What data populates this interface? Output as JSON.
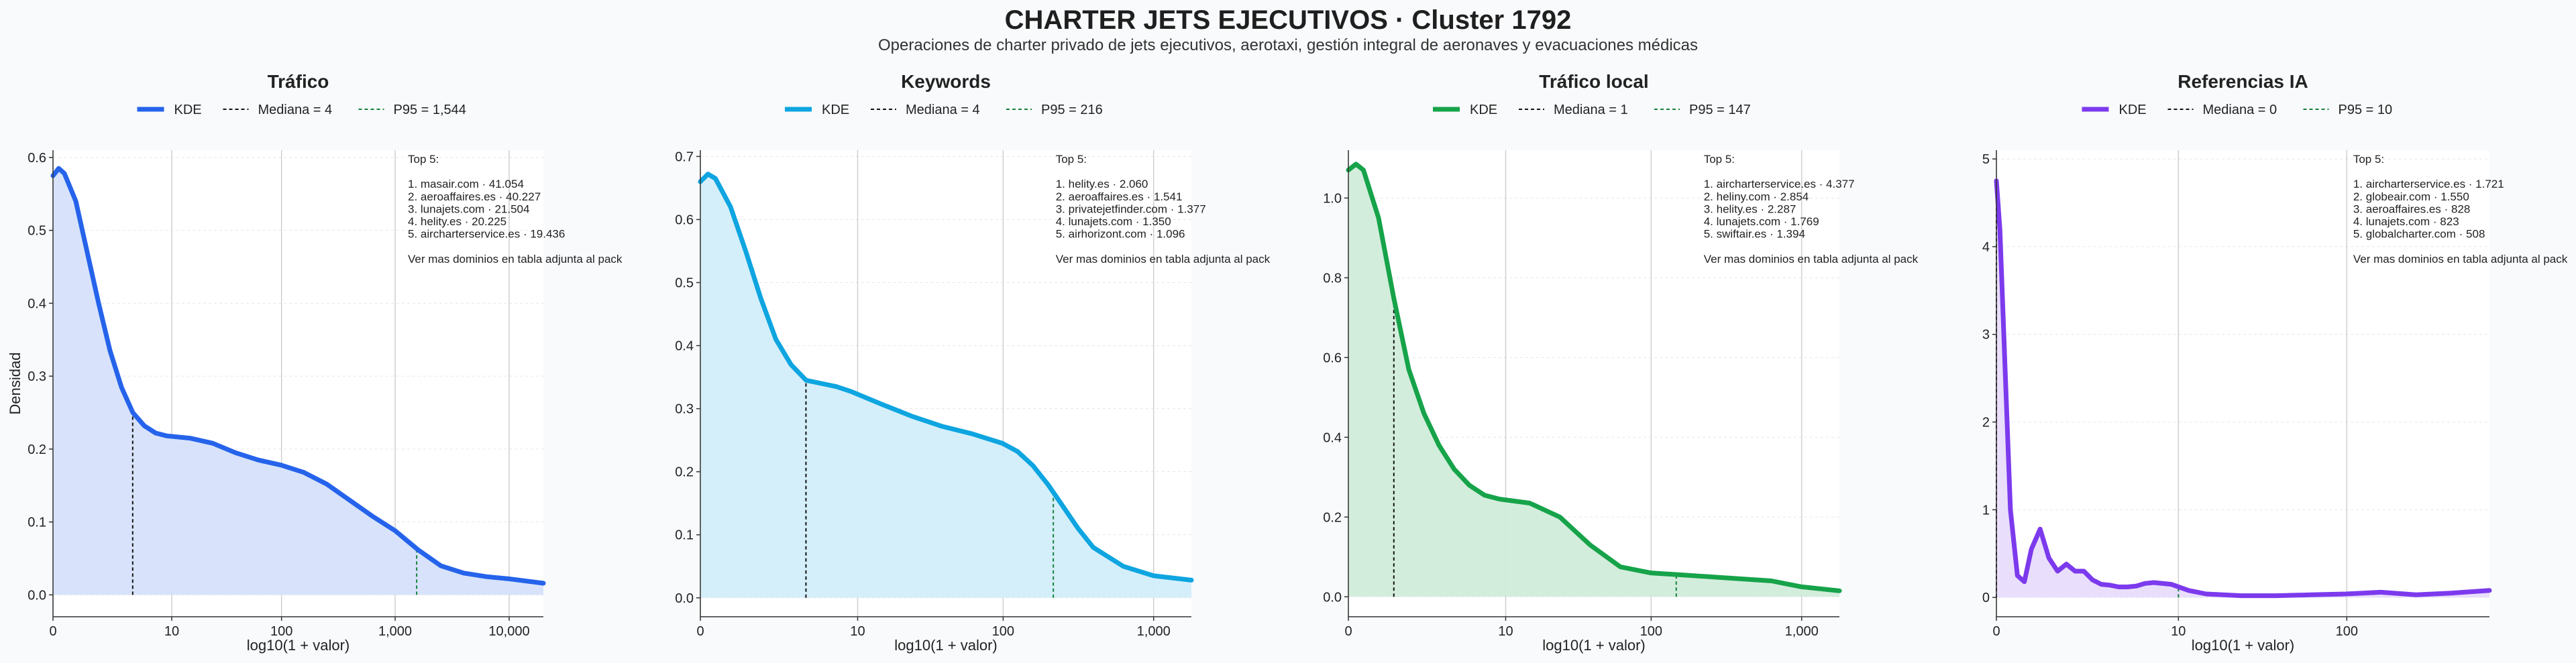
{
  "header": {
    "title": "CHARTER JETS EJECUTIVOS · Cluster 1792",
    "subtitle": "Operaciones de charter privado de jets ejecutivos, aerotaxi, gestión integral de aeronaves y evacuaciones médicas"
  },
  "shared": {
    "ylabel": "Densidad",
    "xlabel": "log10(1 + valor)",
    "legend_kde": "KDE"
  },
  "chart_data": [
    {
      "type": "area",
      "title": "Tráfico",
      "xlabel": "log10(1 + valor)",
      "ylabel": "Densidad",
      "color": "#2563eb",
      "fill": "#d6e1fb",
      "p95_color": "#15803d",
      "xlim": [
        0,
        4.3
      ],
      "ylim": [
        -0.03,
        0.61
      ],
      "xticks": [
        0,
        1.041,
        2.004,
        3.0,
        4.0
      ],
      "xticklabels": [
        "0",
        "10",
        "100",
        "1,000",
        "10,000"
      ],
      "yticks": [
        0.0,
        0.1,
        0.2,
        0.3,
        0.4,
        0.5,
        0.6
      ],
      "yticklabels": [
        "0.0",
        "0.1",
        "0.2",
        "0.3",
        "0.4",
        "0.5",
        "0.6"
      ],
      "legend": [
        "KDE",
        "Mediana = 4",
        "P95 = 1,544"
      ],
      "median": 0.699,
      "p95": 3.189,
      "x": [
        0,
        0.05,
        0.1,
        0.2,
        0.3,
        0.4,
        0.5,
        0.6,
        0.7,
        0.8,
        0.9,
        1.0,
        1.2,
        1.4,
        1.6,
        1.8,
        2.0,
        2.2,
        2.4,
        2.6,
        2.8,
        3.0,
        3.2,
        3.4,
        3.6,
        3.8,
        4.0,
        4.3
      ],
      "y": [
        0.575,
        0.585,
        0.578,
        0.54,
        0.47,
        0.4,
        0.335,
        0.285,
        0.25,
        0.232,
        0.222,
        0.218,
        0.215,
        0.208,
        0.195,
        0.185,
        0.178,
        0.168,
        0.152,
        0.13,
        0.108,
        0.088,
        0.062,
        0.04,
        0.03,
        0.025,
        0.022,
        0.016
      ],
      "annotation": [
        "Top 5:",
        "",
        "1. masair.com · 41.054",
        "2. aeroaffaires.es · 40.227",
        "3. lunajets.com · 21.504",
        "4. helity.es · 20.225",
        "5. aircharterservice.es · 19.436",
        "",
        "Ver mas dominios en tabla adjunta al pack"
      ]
    },
    {
      "type": "area",
      "title": "Keywords",
      "xlabel": "log10(1 + valor)",
      "ylabel": "",
      "color": "#0ea5e0",
      "fill": "#d3eefa",
      "p95_color": "#15803d",
      "xlim": [
        0,
        3.25
      ],
      "ylim": [
        -0.03,
        0.71
      ],
      "xticks": [
        0,
        1.041,
        2.004,
        3.0
      ],
      "xticklabels": [
        "0",
        "10",
        "100",
        "1,000"
      ],
      "yticks": [
        0.0,
        0.1,
        0.2,
        0.3,
        0.4,
        0.5,
        0.6,
        0.7
      ],
      "yticklabels": [
        "0.0",
        "0.1",
        "0.2",
        "0.3",
        "0.4",
        "0.5",
        "0.6",
        "0.7"
      ],
      "legend": [
        "KDE",
        "Mediana = 4",
        "P95 = 216"
      ],
      "median": 0.699,
      "p95": 2.336,
      "x": [
        0,
        0.05,
        0.1,
        0.2,
        0.3,
        0.4,
        0.5,
        0.6,
        0.7,
        0.8,
        0.9,
        1.0,
        1.2,
        1.4,
        1.6,
        1.8,
        2.0,
        2.1,
        2.2,
        2.3,
        2.4,
        2.5,
        2.6,
        2.8,
        3.0,
        3.25
      ],
      "y": [
        0.66,
        0.672,
        0.665,
        0.62,
        0.55,
        0.475,
        0.41,
        0.37,
        0.345,
        0.34,
        0.335,
        0.327,
        0.307,
        0.288,
        0.272,
        0.26,
        0.245,
        0.232,
        0.21,
        0.18,
        0.145,
        0.11,
        0.08,
        0.05,
        0.035,
        0.028
      ],
      "annotation": [
        "Top 5:",
        "",
        "1. helity.es · 2.060",
        "2. aeroaffaires.es · 1.541",
        "3. privatejetfinder.com · 1.377",
        "4. lunajets.com · 1.350",
        "5. airhorizont.com · 1.096",
        "",
        "Ver mas dominios en tabla adjunta al pack"
      ]
    },
    {
      "type": "area",
      "title": "Tráfico local",
      "xlabel": "log10(1 + valor)",
      "ylabel": "",
      "color": "#16a34a",
      "fill": "#d1ecda",
      "p95_color": "#15803d",
      "xlim": [
        0,
        3.25
      ],
      "ylim": [
        -0.05,
        1.12
      ],
      "xticks": [
        0,
        1.041,
        2.004,
        3.0
      ],
      "xticklabels": [
        "0",
        "10",
        "100",
        "1,000"
      ],
      "yticks": [
        0.0,
        0.2,
        0.4,
        0.6,
        0.8,
        1.0
      ],
      "yticklabels": [
        "0.0",
        "0.2",
        "0.4",
        "0.6",
        "0.8",
        "1.0"
      ],
      "legend": [
        "KDE",
        "Mediana = 1",
        "P95 = 147"
      ],
      "median": 0.301,
      "p95": 2.17,
      "x": [
        0,
        0.05,
        0.1,
        0.2,
        0.3,
        0.4,
        0.5,
        0.6,
        0.7,
        0.8,
        0.9,
        1.0,
        1.2,
        1.4,
        1.6,
        1.8,
        2.0,
        2.2,
        2.4,
        2.6,
        2.8,
        3.0,
        3.25
      ],
      "y": [
        1.07,
        1.085,
        1.07,
        0.95,
        0.75,
        0.57,
        0.46,
        0.38,
        0.32,
        0.28,
        0.255,
        0.245,
        0.235,
        0.2,
        0.13,
        0.075,
        0.06,
        0.055,
        0.05,
        0.045,
        0.04,
        0.025,
        0.015
      ],
      "annotation": [
        "Top 5:",
        "",
        "1. aircharterservice.es · 4.377",
        "2. heliny.com · 2.854",
        "3. helity.es · 2.287",
        "4. lunajets.com · 1.769",
        "5. swiftair.es · 1.394",
        "",
        "Ver mas dominios en tabla adjunta al pack"
      ]
    },
    {
      "type": "area",
      "title": "Referencias IA",
      "xlabel": "log10(1 + valor)",
      "ylabel": "",
      "color": "#7c3aed",
      "fill": "#e8dcfb",
      "p95_color": "#15803d",
      "xlim": [
        0,
        2.82
      ],
      "ylim": [
        -0.22,
        5.1
      ],
      "xticks": [
        0,
        1.041,
        2.004
      ],
      "xticklabels": [
        "0",
        "10",
        "100"
      ],
      "yticks": [
        0,
        1,
        2,
        3,
        4,
        5
      ],
      "yticklabels": [
        "0",
        "1",
        "2",
        "3",
        "4",
        "5"
      ],
      "legend": [
        "KDE",
        "Mediana = 0",
        "P95 = 10"
      ],
      "median": 0,
      "p95": 1.041,
      "x": [
        0,
        0.02,
        0.05,
        0.08,
        0.12,
        0.16,
        0.2,
        0.25,
        0.3,
        0.35,
        0.4,
        0.45,
        0.5,
        0.55,
        0.6,
        0.65,
        0.7,
        0.75,
        0.8,
        0.85,
        0.9,
        1.0,
        1.1,
        1.2,
        1.4,
        1.6,
        1.8,
        2.0,
        2.2,
        2.4,
        2.6,
        2.82
      ],
      "y": [
        4.75,
        4.2,
        2.6,
        1.0,
        0.25,
        0.18,
        0.55,
        0.78,
        0.45,
        0.3,
        0.38,
        0.3,
        0.3,
        0.2,
        0.15,
        0.14,
        0.12,
        0.12,
        0.13,
        0.16,
        0.17,
        0.15,
        0.08,
        0.04,
        0.02,
        0.02,
        0.03,
        0.04,
        0.06,
        0.03,
        0.05,
        0.08
      ],
      "annotation": [
        "Top 5:",
        "",
        "1. aircharterservice.es · 1.721",
        "2. globeair.com · 1.550",
        "3. aeroaffaires.es · 828",
        "4. lunajets.com · 823",
        "5. globalcharter.com · 508",
        "",
        "Ver mas dominios en tabla adjunta al pack"
      ]
    }
  ]
}
